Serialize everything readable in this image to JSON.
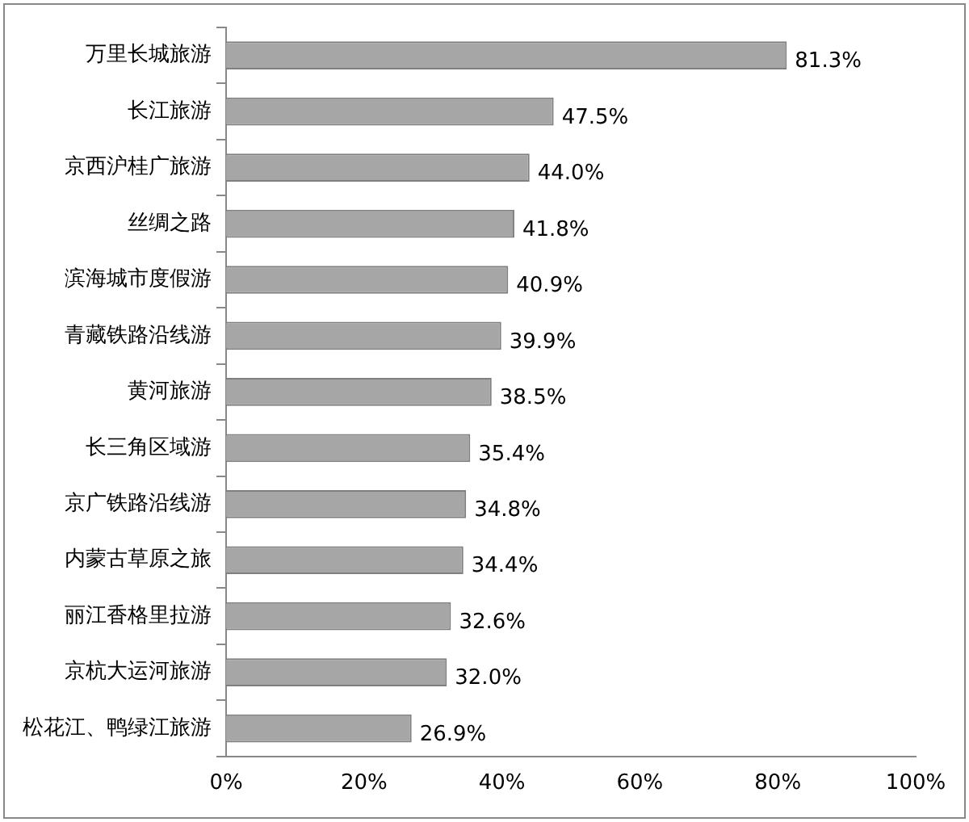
{
  "chart_data": {
    "type": "bar",
    "orientation": "horizontal",
    "categories": [
      "万里长城旅游",
      "长江旅游",
      "京西沪桂广旅游",
      "丝绸之路",
      "滨海城市度假游",
      "青藏铁路沿线游",
      "黄河旅游",
      "长三角区域游",
      "京广铁路沿线游",
      "内蒙古草原之旅",
      "丽江香格里拉游",
      "京杭大运河旅游",
      "松花江、鸭绿江旅游"
    ],
    "values": [
      81.3,
      47.5,
      44.0,
      41.8,
      40.9,
      39.9,
      38.5,
      35.4,
      34.8,
      34.4,
      32.6,
      32.0,
      26.9
    ],
    "value_labels": [
      "81.3%",
      "47.5%",
      "44.0%",
      "41.8%",
      "40.9%",
      "39.9%",
      "38.5%",
      "35.4%",
      "34.8%",
      "34.4%",
      "32.6%",
      "32.0%",
      "26.9%"
    ],
    "color": "#a6a6a6",
    "xlim": [
      0,
      100
    ],
    "xticks": [
      {
        "value": 0,
        "label": "0%"
      },
      {
        "value": 20,
        "label": "20%"
      },
      {
        "value": 40,
        "label": "40%"
      },
      {
        "value": 60,
        "label": "60%"
      },
      {
        "value": 80,
        "label": "80%"
      },
      {
        "value": 100,
        "label": "100%"
      }
    ],
    "grid": false,
    "legend": false
  }
}
